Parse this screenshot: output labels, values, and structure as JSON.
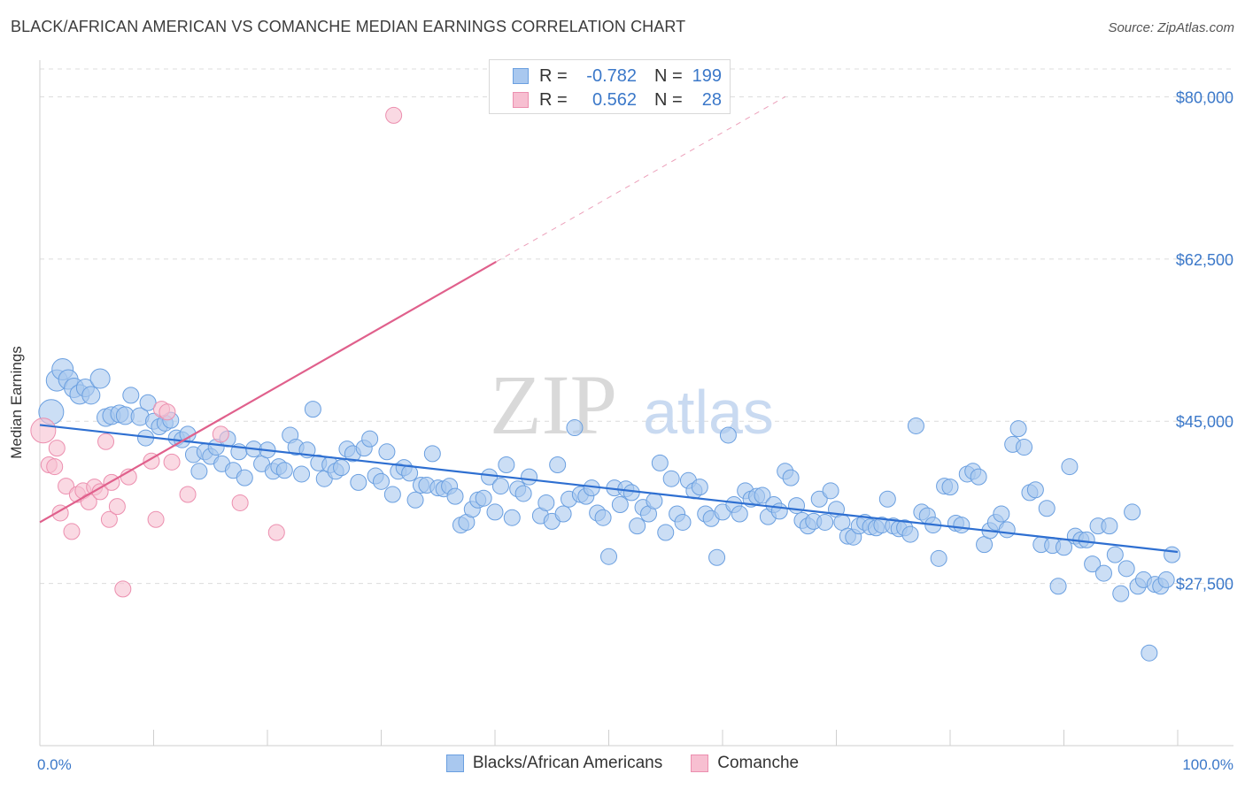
{
  "title": "BLACK/AFRICAN AMERICAN VS COMANCHE MEDIAN EARNINGS CORRELATION CHART",
  "source": "Source: ZipAtlas.com",
  "watermark": {
    "zip": "ZIP",
    "atlas": "atlas"
  },
  "legend": {
    "rows": [
      {
        "r_label": "R =",
        "r_value": "-0.782",
        "n_label": "N =",
        "n_value": "199"
      },
      {
        "r_label": "R =",
        "r_value": "0.562",
        "n_label": "N =",
        "n_value": "28"
      }
    ]
  },
  "bottom_legend": [
    "Blacks/African Americans",
    "Comanche"
  ],
  "colors": {
    "blue_fill": "#a9c8ef",
    "blue_stroke": "#6a9fe0",
    "blue_line": "#2e6fd1",
    "pink_fill": "#f7bfd1",
    "pink_stroke": "#ec8faf",
    "pink_line": "#e0608c",
    "tick_text": "#3b78c9",
    "grid": "#dcdcdc"
  },
  "chart_data": {
    "type": "scatter",
    "title": "BLACK/AFRICAN AMERICAN VS COMANCHE MEDIAN EARNINGS CORRELATION CHART",
    "xlabel": "",
    "ylabel": "Median Earnings",
    "xlim": [
      0,
      100
    ],
    "ylim": [
      10000,
      83000
    ],
    "y_ticks": [
      27500,
      45000,
      62500,
      80000
    ],
    "y_tick_labels": [
      "$27,500",
      "$45,000",
      "$62,500",
      "$80,000"
    ],
    "x_tick_labels": [
      "0.0%",
      "100.0%"
    ],
    "grid": true,
    "legend_position": "top-center",
    "series": [
      {
        "name": "Blacks/African Americans",
        "trend": {
          "x": [
            0,
            100
          ],
          "y": [
            44600,
            30900
          ]
        },
        "points": [
          [
            1.0,
            46,
            14
          ],
          [
            1.5,
            49.4,
            12
          ],
          [
            2.0,
            50.6,
            12
          ],
          [
            2.5,
            49.5,
            11
          ],
          [
            3.0,
            48.6,
            11
          ],
          [
            3.5,
            47.9,
            11
          ],
          [
            4.0,
            48.6,
            10
          ],
          [
            4.5,
            47.8,
            10
          ],
          [
            5.3,
            49.6,
            11
          ],
          [
            5.8,
            45.4,
            10
          ],
          [
            6.3,
            45.6,
            10
          ],
          [
            7.0,
            45.8,
            10
          ],
          [
            7.5,
            45.6,
            10
          ],
          [
            8.0,
            47.8,
            9
          ],
          [
            8.8,
            45.5,
            10
          ],
          [
            9.3,
            43.2,
            9
          ],
          [
            9.5,
            47,
            9
          ],
          [
            10.0,
            45.0,
            9
          ],
          [
            10.5,
            44.4,
            9
          ],
          [
            11.0,
            44.8,
            9
          ],
          [
            11.5,
            45.1,
            9
          ],
          [
            12.0,
            43.2,
            9
          ],
          [
            12.5,
            43.0,
            9
          ],
          [
            13.0,
            43.6,
            9
          ],
          [
            13.5,
            41.4,
            9
          ],
          [
            14.0,
            39.6,
            9
          ],
          [
            14.5,
            41.7,
            9
          ],
          [
            15.0,
            41.2,
            9
          ],
          [
            15.5,
            42.2,
            9
          ],
          [
            16.0,
            40.4,
            9
          ],
          [
            16.5,
            43.1,
            9
          ],
          [
            17.0,
            39.7,
            9
          ],
          [
            17.5,
            41.7,
            9
          ],
          [
            18.0,
            38.9,
            9
          ],
          [
            18.8,
            42.0,
            9
          ],
          [
            19.5,
            40.4,
            9
          ],
          [
            20.0,
            41.9,
            9
          ],
          [
            20.5,
            39.6,
            9
          ],
          [
            21.0,
            40.1,
            9
          ],
          [
            21.5,
            39.7,
            9
          ],
          [
            22.0,
            43.5,
            9
          ],
          [
            22.5,
            42.2,
            9
          ],
          [
            23.0,
            39.3,
            9
          ],
          [
            23.5,
            41.9,
            9
          ],
          [
            24.0,
            46.3,
            9
          ],
          [
            24.5,
            40.5,
            9
          ],
          [
            25.0,
            38.8,
            9
          ],
          [
            25.5,
            40.3,
            9
          ],
          [
            26.0,
            39.6,
            9
          ],
          [
            26.5,
            40.0,
            9
          ],
          [
            27.0,
            42.0,
            9
          ],
          [
            27.5,
            41.5,
            9
          ],
          [
            28.0,
            38.4,
            9
          ],
          [
            28.5,
            42.1,
            9
          ],
          [
            29.0,
            43.1,
            9
          ],
          [
            29.5,
            39.1,
            9
          ],
          [
            30.0,
            38.5,
            9
          ],
          [
            30.5,
            41.7,
            9
          ],
          [
            31.0,
            37.1,
            9
          ],
          [
            31.5,
            39.6,
            9
          ],
          [
            32.0,
            40.0,
            9
          ],
          [
            32.5,
            39.4,
            9
          ],
          [
            33.0,
            36.5,
            9
          ],
          [
            33.5,
            38.1,
            9
          ],
          [
            34.0,
            38.1,
            9
          ],
          [
            34.5,
            41.5,
            9
          ],
          [
            35.0,
            37.8,
            9
          ],
          [
            35.5,
            37.7,
            9
          ],
          [
            36.0,
            38.0,
            9
          ],
          [
            36.5,
            36.9,
            9
          ],
          [
            37.0,
            33.8,
            9
          ],
          [
            37.5,
            34.1,
            9
          ],
          [
            38.0,
            35.5,
            9
          ],
          [
            38.5,
            36.5,
            9
          ],
          [
            39.0,
            36.7,
            9
          ],
          [
            39.5,
            39.0,
            9
          ],
          [
            40.0,
            35.2,
            9
          ],
          [
            40.5,
            38.0,
            9
          ],
          [
            41.0,
            40.3,
            9
          ],
          [
            41.5,
            34.6,
            9
          ],
          [
            42.0,
            37.7,
            9
          ],
          [
            42.5,
            37.2,
            9
          ],
          [
            43.0,
            39.0,
            9
          ],
          [
            44.0,
            34.8,
            9
          ],
          [
            44.5,
            36.2,
            9
          ],
          [
            45.0,
            34.2,
            9
          ],
          [
            45.5,
            40.3,
            9
          ],
          [
            46.0,
            35.0,
            9
          ],
          [
            46.5,
            36.6,
            9
          ],
          [
            47.0,
            44.3,
            9
          ],
          [
            47.5,
            37.1,
            9
          ],
          [
            48.0,
            36.9,
            9
          ],
          [
            48.5,
            37.8,
            9
          ],
          [
            49.0,
            35.1,
            9
          ],
          [
            49.5,
            34.6,
            9
          ],
          [
            50.0,
            30.4,
            9
          ],
          [
            50.5,
            37.8,
            9
          ],
          [
            51.0,
            36.0,
            9
          ],
          [
            51.5,
            37.7,
            9
          ],
          [
            52.0,
            37.3,
            9
          ],
          [
            52.5,
            33.7,
            9
          ],
          [
            53.0,
            35.7,
            9
          ],
          [
            53.5,
            35.0,
            9
          ],
          [
            54.0,
            36.4,
            9
          ],
          [
            54.5,
            40.5,
            9
          ],
          [
            55.0,
            33.0,
            9
          ],
          [
            55.5,
            38.8,
            9
          ],
          [
            56.0,
            35.0,
            9
          ],
          [
            56.5,
            34.1,
            9
          ],
          [
            57.0,
            38.6,
            9
          ],
          [
            57.5,
            37.5,
            9
          ],
          [
            58.0,
            37.9,
            9
          ],
          [
            58.5,
            35.0,
            9
          ],
          [
            59.0,
            34.5,
            9
          ],
          [
            59.5,
            30.3,
            9
          ],
          [
            60.0,
            35.2,
            9
          ],
          [
            60.5,
            43.5,
            9
          ],
          [
            61.0,
            36.0,
            9
          ],
          [
            61.5,
            35.0,
            9
          ],
          [
            62.0,
            37.5,
            9
          ],
          [
            62.5,
            36.6,
            9
          ],
          [
            63.0,
            36.9,
            9
          ],
          [
            63.5,
            37.0,
            9
          ],
          [
            64.0,
            34.7,
            9
          ],
          [
            64.5,
            36.0,
            9
          ],
          [
            65.0,
            35.3,
            9
          ],
          [
            65.5,
            39.6,
            9
          ],
          [
            66.0,
            38.9,
            9
          ],
          [
            66.5,
            35.9,
            9
          ],
          [
            67.0,
            34.3,
            9
          ],
          [
            67.5,
            33.7,
            9
          ],
          [
            68.0,
            34.2,
            9
          ],
          [
            68.5,
            36.6,
            9
          ],
          [
            69.0,
            34.1,
            9
          ],
          [
            69.5,
            37.5,
            9
          ],
          [
            70.0,
            35.5,
            9
          ],
          [
            70.5,
            34.1,
            9
          ],
          [
            71.0,
            32.6,
            9
          ],
          [
            71.5,
            32.5,
            9
          ],
          [
            72.0,
            33.7,
            9
          ],
          [
            72.5,
            34.1,
            9
          ],
          [
            73.0,
            33.6,
            9
          ],
          [
            73.5,
            33.5,
            9
          ],
          [
            74.0,
            33.8,
            9
          ],
          [
            74.5,
            36.6,
            9
          ],
          [
            75.0,
            33.7,
            9
          ],
          [
            75.5,
            33.4,
            9
          ],
          [
            76.0,
            33.5,
            9
          ],
          [
            76.5,
            32.8,
            9
          ],
          [
            77.0,
            44.5,
            9
          ],
          [
            77.5,
            35.2,
            9
          ],
          [
            78.0,
            34.8,
            9
          ],
          [
            78.5,
            33.8,
            9
          ],
          [
            79.0,
            30.2,
            9
          ],
          [
            79.5,
            38.0,
            9
          ],
          [
            80.0,
            37.9,
            9
          ],
          [
            80.5,
            34.0,
            9
          ],
          [
            81.0,
            33.8,
            9
          ],
          [
            81.5,
            39.3,
            9
          ],
          [
            82.0,
            39.6,
            9
          ],
          [
            82.5,
            39.0,
            9
          ],
          [
            83.0,
            31.7,
            9
          ],
          [
            83.5,
            33.2,
            9
          ],
          [
            84.0,
            34.1,
            9
          ],
          [
            84.5,
            35.0,
            9
          ],
          [
            85.0,
            33.3,
            9
          ],
          [
            85.5,
            42.5,
            9
          ],
          [
            86.0,
            44.2,
            9
          ],
          [
            86.5,
            42.2,
            9
          ],
          [
            87.0,
            37.3,
            9
          ],
          [
            87.5,
            37.6,
            9
          ],
          [
            88.0,
            31.7,
            9
          ],
          [
            88.5,
            35.6,
            9
          ],
          [
            89.0,
            31.6,
            9
          ],
          [
            89.5,
            27.2,
            9
          ],
          [
            90.0,
            31.4,
            9
          ],
          [
            90.5,
            40.1,
            9
          ],
          [
            91.0,
            32.6,
            9
          ],
          [
            91.5,
            32.2,
            9
          ],
          [
            92.0,
            32.2,
            9
          ],
          [
            92.5,
            29.6,
            9
          ],
          [
            93.0,
            33.7,
            9
          ],
          [
            93.5,
            28.6,
            9
          ],
          [
            94.0,
            33.7,
            9
          ],
          [
            94.5,
            30.6,
            9
          ],
          [
            95.0,
            26.4,
            9
          ],
          [
            95.5,
            29.1,
            9
          ],
          [
            96.0,
            35.2,
            9
          ],
          [
            96.5,
            27.2,
            9
          ],
          [
            97.0,
            27.9,
            9
          ],
          [
            97.5,
            20.0,
            9
          ],
          [
            98.0,
            27.4,
            9
          ],
          [
            98.5,
            27.2,
            9
          ],
          [
            99.0,
            27.9,
            9
          ],
          [
            99.5,
            30.6,
            9
          ]
        ]
      },
      {
        "name": "Comanche",
        "trend": {
          "x": [
            0,
            40.1
          ],
          "y": [
            34100,
            62200
          ]
        },
        "trend_dashed": {
          "x": [
            40.1,
            65.5
          ],
          "y": [
            62200,
            80000
          ]
        },
        "points": [
          [
            0.3,
            44.0,
            14
          ],
          [
            0.8,
            40.3,
            9
          ],
          [
            1.3,
            40.1,
            9
          ],
          [
            1.5,
            42.1,
            9
          ],
          [
            1.8,
            35.1,
            9
          ],
          [
            2.3,
            38.0,
            9
          ],
          [
            2.8,
            33.1,
            9
          ],
          [
            3.3,
            37.1,
            9
          ],
          [
            3.8,
            37.5,
            9
          ],
          [
            4.3,
            36.3,
            9
          ],
          [
            4.8,
            37.9,
            9
          ],
          [
            5.3,
            37.4,
            9
          ],
          [
            5.8,
            42.8,
            9
          ],
          [
            6.1,
            34.4,
            9
          ],
          [
            6.3,
            38.4,
            9
          ],
          [
            6.8,
            35.8,
            9
          ],
          [
            7.3,
            26.9,
            9
          ],
          [
            7.8,
            39.0,
            9
          ],
          [
            9.8,
            40.7,
            9
          ],
          [
            10.2,
            34.4,
            9
          ],
          [
            10.7,
            46.3,
            9
          ],
          [
            11.2,
            46.0,
            9
          ],
          [
            11.6,
            40.6,
            9
          ],
          [
            13.0,
            37.1,
            9
          ],
          [
            15.9,
            43.6,
            9
          ],
          [
            17.6,
            36.2,
            9
          ],
          [
            20.8,
            33.0,
            9
          ],
          [
            31.1,
            78.0,
            9
          ]
        ]
      }
    ]
  }
}
